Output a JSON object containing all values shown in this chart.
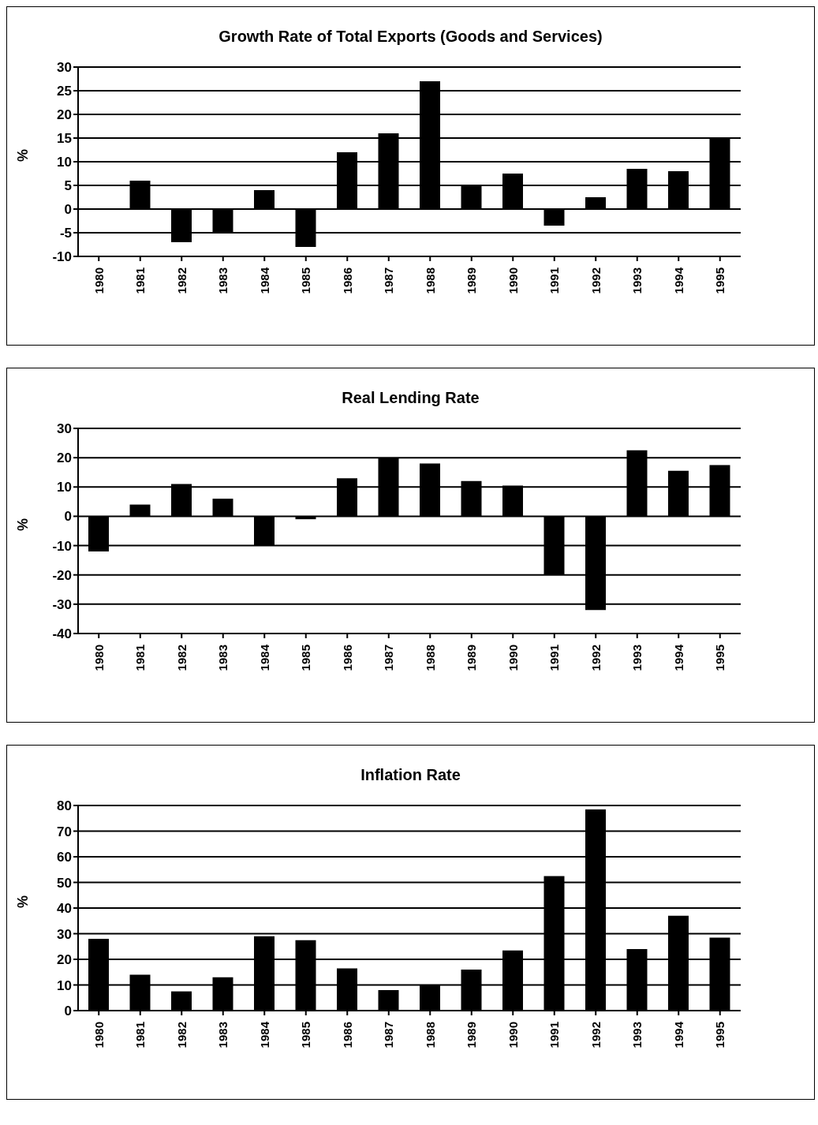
{
  "chart_data": [
    {
      "type": "bar",
      "title": "Growth Rate of Total Exports (Goods and Services)",
      "ylabel": "%",
      "categories": [
        "1980",
        "1981",
        "1982",
        "1983",
        "1984",
        "1985",
        "1986",
        "1987",
        "1988",
        "1989",
        "1990",
        "1991",
        "1992",
        "1993",
        "1994",
        "1995"
      ],
      "values": [
        null,
        6,
        -7,
        -5,
        4,
        -8,
        12,
        16,
        27,
        5,
        7.5,
        -3.5,
        2.5,
        8.5,
        8,
        15
      ],
      "color": "#000000",
      "ylim": [
        -10,
        30
      ],
      "yticks": [
        -10,
        -5,
        0,
        5,
        10,
        15,
        20,
        25,
        30
      ],
      "grid": "y"
    },
    {
      "type": "bar",
      "title": "Real Lending Rate",
      "ylabel": "%",
      "categories": [
        "1980",
        "1981",
        "1982",
        "1983",
        "1984",
        "1985",
        "1986",
        "1987",
        "1988",
        "1989",
        "1990",
        "1991",
        "1992",
        "1993",
        "1994",
        "1995"
      ],
      "values": [
        -12,
        4,
        11,
        6,
        -10,
        -1,
        13,
        20,
        18,
        12,
        10.5,
        -20,
        -32,
        22.5,
        15.5,
        17.5
      ],
      "color": "#000000",
      "ylim": [
        -40,
        30
      ],
      "yticks": [
        -40,
        -30,
        -20,
        -10,
        0,
        10,
        20,
        30
      ],
      "grid": "y"
    },
    {
      "type": "bar",
      "title": "Inflation Rate",
      "ylabel": "%",
      "categories": [
        "1980",
        "1981",
        "1982",
        "1983",
        "1984",
        "1985",
        "1986",
        "1987",
        "1988",
        "1989",
        "1990",
        "1991",
        "1992",
        "1993",
        "1994",
        "1995"
      ],
      "values": [
        28,
        14,
        7.5,
        13,
        29,
        27.5,
        16.5,
        8,
        10,
        16,
        23.5,
        52.5,
        78.5,
        24,
        37,
        28.5
      ],
      "color": "#000000",
      "ylim": [
        0,
        80
      ],
      "yticks": [
        0,
        10,
        20,
        30,
        40,
        50,
        60,
        70,
        80
      ],
      "grid": "y"
    }
  ]
}
